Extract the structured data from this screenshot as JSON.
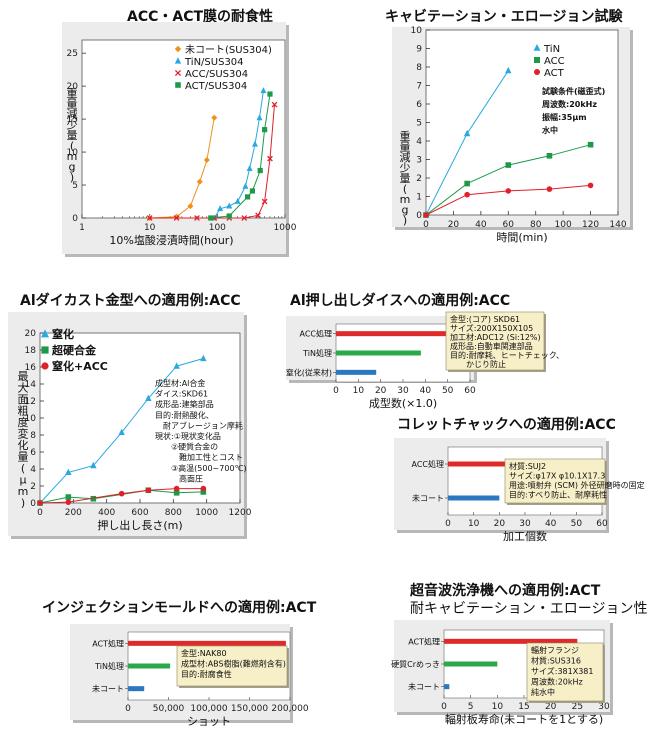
{
  "chart_data": [
    {
      "id": "c1",
      "type": "line",
      "title": "ACC・ACT膜の耐食性",
      "xlabel": "10%塩酸浸漬時間(hour)",
      "ylabel": "重量減少量(mg)",
      "xscale": "log",
      "xlim": [
        1,
        1000
      ],
      "ylim": [
        0,
        27
      ],
      "xticks": [
        "1",
        "10",
        "100",
        "1000"
      ],
      "yticks": [
        "0",
        "5",
        "10",
        "15",
        "20",
        "25"
      ],
      "legend": "top-right",
      "series": [
        {
          "name": "未コート(SUS304)",
          "color": "#f0901c",
          "marker": "diamond",
          "x": [
            10,
            25,
            40,
            55,
            70,
            90
          ],
          "y": [
            0,
            0.2,
            1.8,
            5.5,
            8.8,
            15.2
          ]
        },
        {
          "name": "TiN/SUS304",
          "color": "#2aa8e0",
          "marker": "triangle",
          "x": [
            90,
            110,
            150,
            200,
            260,
            300,
            360,
            420,
            480
          ],
          "y": [
            0,
            1.4,
            1.8,
            2.5,
            4.8,
            7.5,
            11.2,
            15.2,
            19.3
          ]
        },
        {
          "name": "ACC/SUS304",
          "color": "#e0202a",
          "marker": "x",
          "x": [
            10,
            25,
            50,
            90,
            150,
            250,
            400,
            500,
            600,
            700
          ],
          "y": [
            0,
            0,
            0,
            0,
            0,
            0,
            0.4,
            2.5,
            9,
            17.2
          ]
        },
        {
          "name": "ACT/SUS304",
          "color": "#1c9a4a",
          "marker": "square",
          "x": [
            80,
            150,
            280,
            330,
            430,
            500,
            600
          ],
          "y": [
            0,
            0.3,
            3.2,
            4.1,
            7.2,
            13.4,
            18.8
          ]
        }
      ]
    },
    {
      "id": "c2",
      "type": "line",
      "title": "キャビテーション・エロージョン試験",
      "xlabel": "時間(min)",
      "ylabel": "重量減少量(mg)",
      "xlim": [
        0,
        140
      ],
      "ylim": [
        0,
        10
      ],
      "xticks": [
        "0",
        "20",
        "40",
        "60",
        "80",
        "100",
        "120",
        "140"
      ],
      "yticks": [
        "0",
        "1",
        "2",
        "3",
        "4",
        "5",
        "6",
        "7",
        "8",
        "9",
        "10"
      ],
      "legend": "top-left",
      "notes": [
        "試験条件(磁歪式)",
        "周波数:20kHz",
        "振幅:35μm",
        "水中"
      ],
      "series": [
        {
          "name": "TiN",
          "color": "#2aa8e0",
          "marker": "triangle",
          "x": [
            0,
            30,
            60
          ],
          "y": [
            0,
            4.4,
            7.8
          ]
        },
        {
          "name": "ACC",
          "color": "#1c9a4a",
          "marker": "square",
          "x": [
            0,
            30,
            60,
            90,
            120
          ],
          "y": [
            0,
            1.7,
            2.7,
            3.2,
            3.8
          ]
        },
        {
          "name": "ACT",
          "color": "#e0202a",
          "marker": "circle",
          "x": [
            0,
            30,
            60,
            90,
            120
          ],
          "y": [
            0,
            1.1,
            1.3,
            1.4,
            1.6
          ]
        }
      ]
    },
    {
      "id": "c3",
      "type": "line",
      "title": "Alダイカスト金型への適用例:ACC",
      "xlabel": "押し出し長さ(m)",
      "ylabel": "最大面粗度変化量(μm)",
      "xlim": [
        0,
        1200
      ],
      "ylim": [
        0,
        20
      ],
      "xticks": [
        "0",
        "200",
        "400",
        "600",
        "800",
        "1000",
        "1200"
      ],
      "yticks": [
        "0",
        "2",
        "4",
        "6",
        "8",
        "10",
        "12",
        "14",
        "16",
        "18",
        "20"
      ],
      "legend": "top-left",
      "notes": [
        "成型材:Al合金",
        "ダイス:SKD61",
        "成形品:建築部品",
        "目的:耐熱酸化、",
        "　耐アブレージョン摩耗",
        "現状:①現状変化品",
        "　　②硬質合金の",
        "　　　難加工性とコスト",
        "　　③高温(500~700℃)",
        "　　　高面圧"
      ],
      "series": [
        {
          "name": "窒化",
          "color": "#2aa8e0",
          "marker": "triangle",
          "x": [
            0,
            170,
            320,
            490,
            650,
            820,
            980
          ],
          "y": [
            0,
            3.6,
            4.4,
            8.3,
            12.3,
            16.1,
            17.0
          ]
        },
        {
          "name": "超硬合金",
          "color": "#1c9a4a",
          "marker": "square",
          "x": [
            0,
            170,
            320,
            650,
            820,
            980
          ],
          "y": [
            0,
            0.7,
            0.5,
            1.5,
            1.2,
            1.3
          ]
        },
        {
          "name": "窒化+ACC",
          "color": "#e0202a",
          "marker": "circle",
          "x": [
            0,
            170,
            490,
            650,
            820,
            980
          ],
          "y": [
            0,
            0.1,
            1.1,
            1.5,
            1.7,
            1.7
          ]
        }
      ]
    },
    {
      "id": "c4",
      "type": "bar",
      "orientation": "horizontal",
      "title": "Al押し出しダイスへの適用例:ACC",
      "xlabel": "成型数(×1.0)",
      "xlim": [
        0,
        60
      ],
      "xticks": [
        "0",
        "10",
        "20",
        "30",
        "40",
        "50",
        "60"
      ],
      "categories": [
        "ACC処理",
        "TiN処理",
        "窒化(従来材)"
      ],
      "values": [
        53,
        38,
        18
      ],
      "colors": [
        "#e02a2a",
        "#2aa84a",
        "#2a78c0"
      ],
      "notes": [
        "金型:(コア) SKD61",
        "サイズ:200X150X105",
        "加工材:ADC12 (Si:12%)",
        "成形品:自動車関連部品",
        "目的:耐摩耗、ヒートチェック、",
        "　　かじり防止"
      ]
    },
    {
      "id": "c5",
      "type": "bar",
      "orientation": "horizontal",
      "title": "コレットチャックへの適用例:ACC",
      "xlabel": "加工個数",
      "xlim": [
        0,
        60
      ],
      "xticks": [
        "0",
        "10",
        "20",
        "30",
        "40",
        "50",
        "60"
      ],
      "categories": [
        "ACC処理",
        "未コート"
      ],
      "values": [
        50,
        20
      ],
      "colors": [
        "#e02a2a",
        "#2a78c0"
      ],
      "notes": [
        "材質:SUJ2",
        "サイズ:φ17X φ10.1X17.3",
        "用途:噴射弁 (SCM) 外径研磨時の固定",
        "目的:すべり防止、耐摩耗性"
      ]
    },
    {
      "id": "c6",
      "type": "bar",
      "orientation": "horizontal",
      "title": "インジェクションモールドへの適用例:ACT",
      "xlabel": "ショット",
      "xlim": [
        0,
        200000
      ],
      "xticks": [
        "0",
        "50,000",
        "100,000",
        "150,000",
        "200,000"
      ],
      "categories": [
        "ACT処理",
        "TiN処理",
        "未コート"
      ],
      "values": [
        195000,
        52000,
        20000
      ],
      "colors": [
        "#e02a2a",
        "#2aa84a",
        "#2a78c0"
      ],
      "notes": [
        "金型:NAK80",
        "成型材:ABS樹脂(難燃剤含有)",
        "目的:耐腐食性"
      ]
    },
    {
      "id": "c7",
      "type": "bar",
      "orientation": "horizontal",
      "title": "超音波洗浄機への適用例:ACT",
      "subtitle": "耐キャビテーション・エロージョン性",
      "xlabel": "輻射板寿命(未コートを1とする)",
      "xlim": [
        0,
        30
      ],
      "xticks": [
        "0",
        "5",
        "10",
        "15",
        "20",
        "25",
        "30"
      ],
      "categories": [
        "ACT処理",
        "硬質Crめっき",
        "未コート"
      ],
      "values": [
        25,
        10,
        1
      ],
      "colors": [
        "#e02a2a",
        "#2aa84a",
        "#2a78c0"
      ],
      "notes": [
        "輻射フランジ",
        "材質:SUS316",
        "サイズ:381X381",
        "周波数:20kHz",
        "純水中"
      ]
    }
  ]
}
